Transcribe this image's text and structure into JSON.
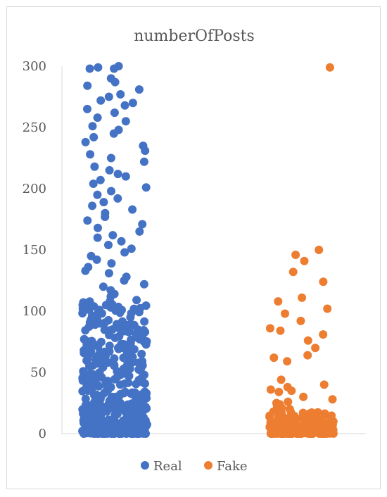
{
  "chart_data": {
    "type": "scatter",
    "title": "numberOfPosts",
    "xlabel": "",
    "ylabel": "",
    "ylim": [
      0,
      300
    ],
    "yticks": [
      "0",
      "50",
      "100",
      "150",
      "200",
      "250",
      "300"
    ],
    "grid": false,
    "legend": "bottom",
    "series": [
      {
        "name": "Real",
        "color": "#4472C4",
        "x_category": 1,
        "y_values": [
          298,
          300,
          298,
          299,
          290,
          287,
          284,
          281,
          277,
          275,
          272,
          270,
          268,
          265,
          262,
          258,
          255,
          251,
          248,
          245,
          242,
          238,
          235,
          231,
          228,
          225,
          222,
          218,
          215,
          212,
          210,
          207,
          204,
          201,
          198,
          195,
          192,
          189,
          186,
          183,
          180,
          177,
          174,
          171,
          168,
          165,
          162,
          160,
          157,
          154,
          151,
          148,
          145,
          142,
          139,
          136,
          133,
          131,
          128,
          125,
          122,
          120,
          117,
          114,
          112,
          109,
          106,
          103,
          101,
          98,
          95,
          93,
          90,
          88,
          85,
          83,
          80,
          78,
          75,
          73,
          70,
          68,
          65,
          63,
          60,
          58,
          55,
          53,
          50,
          48,
          45,
          43,
          40,
          38,
          35,
          33,
          30,
          28,
          25,
          23,
          20,
          18,
          15,
          13,
          10,
          8,
          5,
          3,
          1,
          0
        ]
      },
      {
        "name": "Fake",
        "color": "#ED7D31",
        "x_category": 2,
        "y_values": [
          299,
          150,
          146,
          141,
          132,
          124,
          111,
          108,
          102,
          98,
          92,
          86,
          84,
          81,
          76,
          70,
          64,
          62,
          59,
          44,
          40,
          38,
          36,
          35,
          34,
          30,
          28,
          26,
          25,
          24,
          22,
          21,
          20,
          18,
          17,
          16,
          15,
          14,
          13,
          12,
          11,
          10,
          9,
          8,
          7,
          6,
          5,
          4,
          3,
          2,
          1,
          0
        ]
      }
    ]
  }
}
